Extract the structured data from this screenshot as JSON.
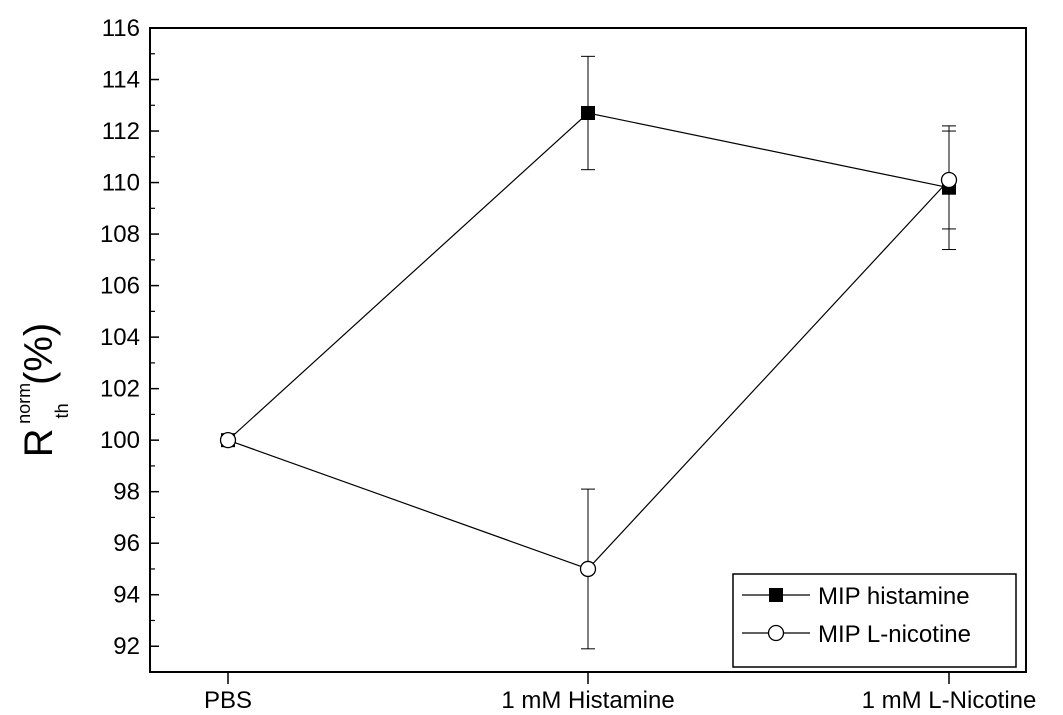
{
  "chart_data": {
    "type": "line",
    "categories": [
      "PBS",
      "1 mM Histamine",
      "1 mM L-Nicotine"
    ],
    "ylabel": {
      "main": "R",
      "superscript": "norm",
      "subscript": "th",
      "unit": "(%)"
    },
    "xlabel": "",
    "title": "",
    "ylim": [
      91,
      116
    ],
    "yticks": [
      92,
      94,
      96,
      98,
      100,
      102,
      104,
      106,
      108,
      110,
      112,
      114,
      116
    ],
    "grid": false,
    "legend_position": "bottom-right",
    "series": [
      {
        "name": "MIP histamine",
        "marker": "filled-square",
        "color": "#000000",
        "values": [
          100,
          112.7,
          109.8
        ],
        "errors": [
          0,
          2.2,
          2.4
        ]
      },
      {
        "name": "MIP L-nicotine",
        "marker": "open-circle",
        "color": "#000000",
        "values": [
          100,
          95.0,
          110.1
        ],
        "errors": [
          0,
          3.1,
          1.9
        ]
      }
    ]
  }
}
